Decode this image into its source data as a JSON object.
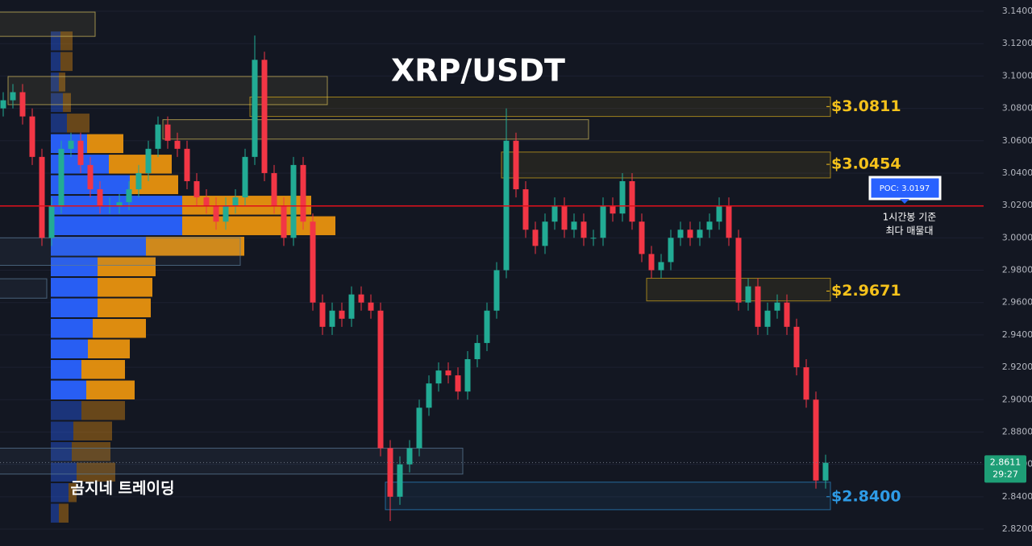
{
  "chart_data": {
    "type": "candlestick",
    "title": "XRP/USDT",
    "watermark": "곰지네 트레이딩",
    "up_color": "#22ab94",
    "down_color": "#f23645",
    "ylim": [
      2.82,
      3.14
    ],
    "yticks": [
      {
        "value": 3.14,
        "label": "3.1400"
      },
      {
        "value": 3.12,
        "label": "3.1200"
      },
      {
        "value": 3.1,
        "label": "3.1000"
      },
      {
        "value": 3.08,
        "label": "3.0800"
      },
      {
        "value": 3.06,
        "label": "3.0600"
      },
      {
        "value": 3.04,
        "label": "3.0400"
      },
      {
        "value": 3.02,
        "label": "3.0200"
      },
      {
        "value": 3.0,
        "label": "3.0000"
      },
      {
        "value": 2.98,
        "label": "2.9800"
      },
      {
        "value": 2.96,
        "label": "2.9600"
      },
      {
        "value": 2.94,
        "label": "2.9400"
      },
      {
        "value": 2.92,
        "label": "2.9200"
      },
      {
        "value": 2.9,
        "label": "2.9000"
      },
      {
        "value": 2.88,
        "label": "2.8800"
      },
      {
        "value": 2.86,
        "label": "2.8600"
      },
      {
        "value": 2.84,
        "label": "2.8400"
      },
      {
        "value": 2.82,
        "label": "2.8200"
      }
    ],
    "ohlc": [
      [
        3.08,
        3.09,
        3.075,
        3.085
      ],
      [
        3.085,
        3.095,
        3.08,
        3.09
      ],
      [
        3.09,
        3.095,
        3.07,
        3.075
      ],
      [
        3.075,
        3.08,
        3.045,
        3.05
      ],
      [
        3.05,
        3.055,
        2.995,
        3.0
      ],
      [
        3.0,
        3.025,
        2.995,
        3.02
      ],
      [
        3.02,
        3.06,
        3.015,
        3.055
      ],
      [
        3.055,
        3.065,
        3.05,
        3.06
      ],
      [
        3.06,
        3.065,
        3.04,
        3.045
      ],
      [
        3.045,
        3.05,
        3.025,
        3.03
      ],
      [
        3.03,
        3.035,
        3.015,
        3.02
      ],
      [
        3.02,
        3.025,
        3.015,
        3.02
      ],
      [
        3.02,
        3.027,
        3.015,
        3.022
      ],
      [
        3.022,
        3.035,
        3.017,
        3.03
      ],
      [
        3.03,
        3.045,
        3.025,
        3.04
      ],
      [
        3.04,
        3.06,
        3.035,
        3.055
      ],
      [
        3.055,
        3.075,
        3.05,
        3.07
      ],
      [
        3.07,
        3.075,
        3.055,
        3.06
      ],
      [
        3.06,
        3.065,
        3.05,
        3.055
      ],
      [
        3.055,
        3.06,
        3.03,
        3.035
      ],
      [
        3.035,
        3.04,
        3.02,
        3.025
      ],
      [
        3.025,
        3.03,
        3.015,
        3.02
      ],
      [
        3.02,
        3.025,
        3.005,
        3.01
      ],
      [
        3.01,
        3.025,
        3.005,
        3.02
      ],
      [
        3.02,
        3.03,
        3.015,
        3.025
      ],
      [
        3.025,
        3.055,
        3.02,
        3.05
      ],
      [
        3.05,
        3.125,
        3.045,
        3.11
      ],
      [
        3.11,
        3.115,
        3.035,
        3.04
      ],
      [
        3.04,
        3.045,
        3.015,
        3.02
      ],
      [
        3.02,
        3.025,
        2.995,
        3.0
      ],
      [
        3.0,
        3.05,
        2.995,
        3.045
      ],
      [
        3.045,
        3.05,
        3.005,
        3.01
      ],
      [
        3.01,
        3.015,
        2.955,
        2.96
      ],
      [
        2.96,
        2.965,
        2.94,
        2.945
      ],
      [
        2.945,
        2.96,
        2.94,
        2.955
      ],
      [
        2.955,
        2.96,
        2.945,
        2.95
      ],
      [
        2.95,
        2.97,
        2.945,
        2.965
      ],
      [
        2.965,
        2.97,
        2.955,
        2.96
      ],
      [
        2.96,
        2.965,
        2.95,
        2.955
      ],
      [
        2.955,
        2.96,
        2.865,
        2.87
      ],
      [
        2.87,
        2.875,
        2.825,
        2.84
      ],
      [
        2.84,
        2.865,
        2.835,
        2.86
      ],
      [
        2.86,
        2.875,
        2.855,
        2.87
      ],
      [
        2.87,
        2.9,
        2.865,
        2.895
      ],
      [
        2.895,
        2.915,
        2.89,
        2.91
      ],
      [
        2.91,
        2.923,
        2.905,
        2.918
      ],
      [
        2.918,
        2.923,
        2.91,
        2.915
      ],
      [
        2.915,
        2.92,
        2.9,
        2.905
      ],
      [
        2.905,
        2.93,
        2.9,
        2.925
      ],
      [
        2.925,
        2.94,
        2.92,
        2.935
      ],
      [
        2.935,
        2.96,
        2.93,
        2.955
      ],
      [
        2.955,
        2.985,
        2.95,
        2.98
      ],
      [
        2.98,
        3.08,
        2.975,
        3.06
      ],
      [
        3.06,
        3.065,
        3.025,
        3.03
      ],
      [
        3.03,
        3.035,
        3.0,
        3.005
      ],
      [
        3.005,
        3.01,
        2.99,
        2.995
      ],
      [
        2.995,
        3.015,
        2.99,
        3.01
      ],
      [
        3.01,
        3.025,
        3.005,
        3.02
      ],
      [
        3.02,
        3.025,
        3.0,
        3.005
      ],
      [
        3.005,
        3.015,
        3.0,
        3.01
      ],
      [
        3.01,
        3.015,
        2.995,
        3.0
      ],
      [
        3.0,
        3.005,
        2.995,
        3.0
      ],
      [
        3.0,
        3.025,
        2.995,
        3.02
      ],
      [
        3.02,
        3.025,
        3.01,
        3.015
      ],
      [
        3.015,
        3.04,
        3.01,
        3.035
      ],
      [
        3.035,
        3.04,
        3.005,
        3.01
      ],
      [
        3.01,
        3.015,
        2.985,
        2.99
      ],
      [
        2.99,
        2.995,
        2.975,
        2.98
      ],
      [
        2.98,
        2.99,
        2.975,
        2.985
      ],
      [
        2.985,
        3.005,
        2.98,
        3.0
      ],
      [
        3.0,
        3.01,
        2.995,
        3.005
      ],
      [
        3.005,
        3.01,
        2.995,
        3.0
      ],
      [
        3.0,
        3.01,
        2.995,
        3.005
      ],
      [
        3.005,
        3.015,
        3.0,
        3.01
      ],
      [
        3.01,
        3.025,
        3.005,
        3.02
      ],
      [
        3.02,
        3.025,
        2.995,
        3.0
      ],
      [
        3.0,
        3.005,
        2.955,
        2.96
      ],
      [
        2.96,
        2.975,
        2.955,
        2.97
      ],
      [
        2.97,
        2.975,
        2.94,
        2.945
      ],
      [
        2.945,
        2.96,
        2.94,
        2.955
      ],
      [
        2.955,
        2.965,
        2.95,
        2.96
      ],
      [
        2.96,
        2.965,
        2.94,
        2.945
      ],
      [
        2.945,
        2.95,
        2.915,
        2.92
      ],
      [
        2.92,
        2.925,
        2.895,
        2.9
      ],
      [
        2.9,
        2.905,
        2.845,
        2.85
      ],
      [
        2.85,
        2.866,
        2.845,
        2.861
      ]
    ],
    "volume_profile": {
      "range": [
        3.128,
        2.8235
      ],
      "value_area": [
        3.07,
        2.905
      ],
      "buy_color": "#2962ff",
      "sell_color": "#e8920f",
      "buy": [
        12,
        12,
        10,
        15,
        20,
        45,
        72,
        98,
        163,
        163,
        118,
        58,
        58,
        58,
        52,
        46,
        38,
        44,
        38,
        28,
        26,
        32,
        22,
        10
      ],
      "sell": [
        15,
        15,
        8,
        10,
        28,
        45,
        78,
        60,
        160,
        190,
        122,
        72,
        68,
        66,
        66,
        52,
        54,
        60,
        54,
        48,
        48,
        48,
        10,
        12
      ]
    },
    "boxes": [
      {
        "range": [
          3.0997,
          3.0823
        ],
        "span": [
          1,
          33
        ],
        "color": "#c9b458"
      },
      {
        "range": [
          3.073,
          3.061
        ],
        "span": [
          17,
          60
        ],
        "color": "#c9b458"
      },
      {
        "range": [
          2.87,
          2.854
        ],
        "span": [
          0,
          47
        ],
        "color": "#5a7a96"
      },
      {
        "range": [
          3.0,
          2.983
        ],
        "span": [
          0,
          24
        ],
        "color": "#5a7a96"
      },
      {
        "range": [
          2.9747,
          2.9627
        ],
        "span": [
          0,
          4
        ],
        "color": "#5a7a96"
      },
      {
        "range": [
          3.1395,
          3.1245
        ],
        "span": [
          0,
          9
        ],
        "color": "#c9b458"
      }
    ],
    "levels": [
      {
        "value": 3.0811,
        "label": "$3.0811",
        "color": "#f5c21b",
        "zone": [
          3.087,
          3.075
        ],
        "span": [
          26,
          85
        ]
      },
      {
        "value": 3.0454,
        "label": "$3.0454",
        "color": "#f5c21b",
        "zone": [
          3.053,
          3.037
        ],
        "span": [
          52,
          85
        ]
      },
      {
        "value": 2.9671,
        "label": "$2.9671",
        "color": "#f5c21b",
        "zone": [
          2.975,
          2.961
        ],
        "span": [
          67,
          85
        ]
      },
      {
        "value": 2.84,
        "label": "$2.8400",
        "color": "#2e9be6",
        "zone": [
          2.849,
          2.832
        ],
        "span": [
          40,
          85
        ]
      }
    ],
    "poc": {
      "value": 3.0197,
      "label": "POC: 3.0197",
      "color": "#e0101a",
      "note": [
        "1시간봉 기준",
        "최다 매물대"
      ]
    },
    "last_price": {
      "value": 2.8611,
      "label": "2.8611",
      "countdown": "29:27",
      "color": "#1e9e76"
    }
  }
}
